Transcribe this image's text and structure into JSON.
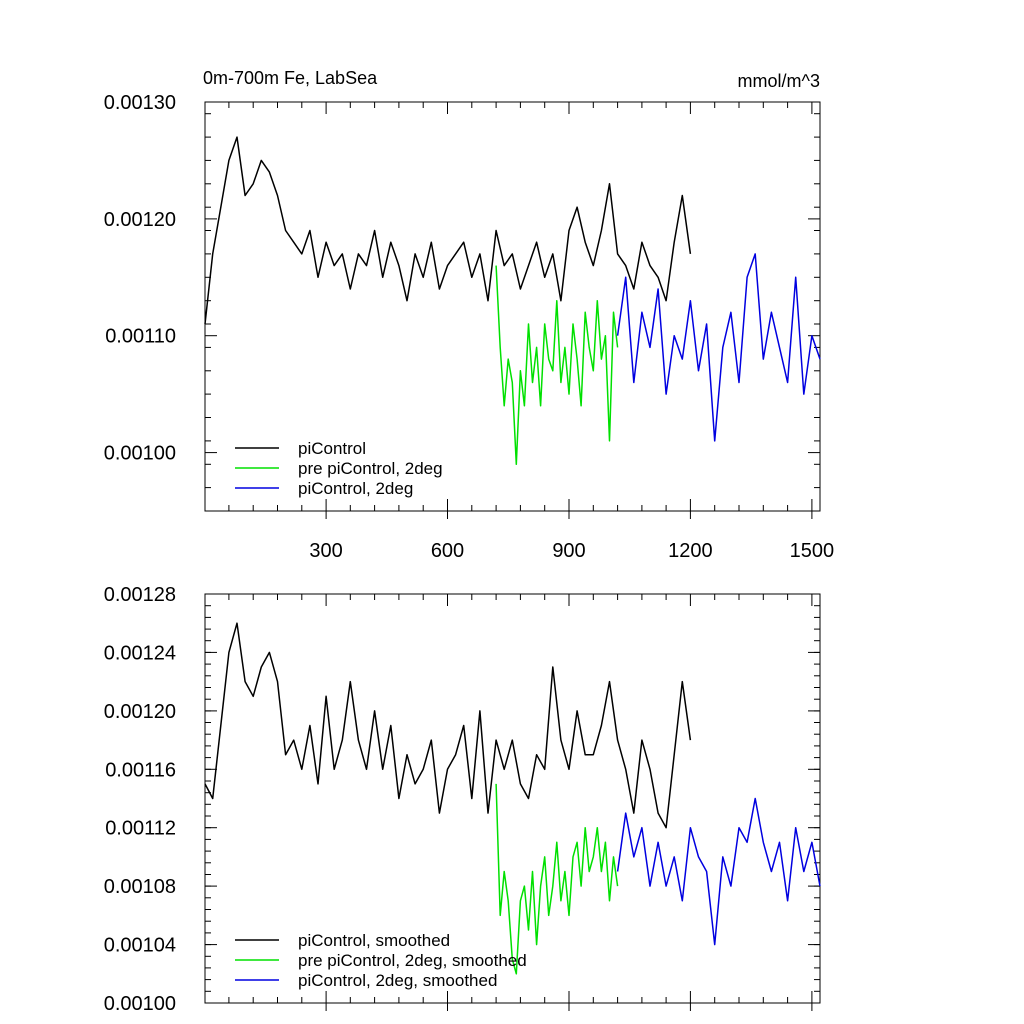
{
  "chart_data": [
    {
      "type": "line",
      "title": "0m-700m Fe, LabSea",
      "units": "mmol/m^3",
      "xlim": [
        1,
        1520
      ],
      "ylim": [
        0.00095,
        0.0013
      ],
      "xticks": [
        300,
        600,
        900,
        1200,
        1500
      ],
      "xtick_labels": [
        "300",
        "600",
        "900",
        "1200",
        "1500"
      ],
      "yticks": [
        0.001,
        0.0011,
        0.0012,
        0.0013
      ],
      "ytick_labels": [
        "0.00100",
        "0.00110",
        "0.00120",
        "0.00130"
      ],
      "legend_position": "bottom-left",
      "series": [
        {
          "name": "piControl",
          "color": "#000000",
          "x": [
            1,
            20,
            40,
            60,
            80,
            100,
            120,
            140,
            160,
            180,
            200,
            220,
            240,
            260,
            280,
            300,
            320,
            340,
            360,
            380,
            400,
            420,
            440,
            460,
            480,
            500,
            520,
            540,
            560,
            580,
            600,
            620,
            640,
            660,
            680,
            700,
            720,
            740,
            760,
            780,
            800,
            820,
            840,
            860,
            880,
            900,
            920,
            940,
            960,
            980,
            1000,
            1020,
            1040,
            1060,
            1080,
            1100,
            1120,
            1140,
            1160,
            1180,
            1200
          ],
          "values": [
            0.00111,
            0.00117,
            0.00121,
            0.00125,
            0.00127,
            0.00122,
            0.00123,
            0.00125,
            0.00124,
            0.00122,
            0.00119,
            0.00118,
            0.00117,
            0.00119,
            0.00115,
            0.00118,
            0.00116,
            0.00117,
            0.00114,
            0.00117,
            0.00116,
            0.00119,
            0.00115,
            0.00118,
            0.00116,
            0.00113,
            0.00117,
            0.00115,
            0.00118,
            0.00114,
            0.00116,
            0.00117,
            0.00118,
            0.00115,
            0.00117,
            0.00113,
            0.00119,
            0.00116,
            0.00117,
            0.00114,
            0.00116,
            0.00118,
            0.00115,
            0.00117,
            0.00113,
            0.00119,
            0.00121,
            0.00118,
            0.00116,
            0.00119,
            0.00123,
            0.00117,
            0.00116,
            0.00114,
            0.00118,
            0.00116,
            0.00115,
            0.00113,
            0.00118,
            0.00122,
            0.00117
          ]
        },
        {
          "name": "pre piControl, 2deg",
          "color": "#00e000",
          "x": [
            720,
            730,
            740,
            750,
            760,
            770,
            780,
            790,
            800,
            810,
            820,
            830,
            840,
            850,
            860,
            870,
            880,
            890,
            900,
            910,
            920,
            930,
            940,
            950,
            960,
            970,
            980,
            990,
            1000,
            1010,
            1020
          ],
          "values": [
            0.00116,
            0.00109,
            0.00104,
            0.00108,
            0.00106,
            0.00099,
            0.00107,
            0.00104,
            0.00111,
            0.00106,
            0.00109,
            0.00104,
            0.00111,
            0.00108,
            0.00107,
            0.00113,
            0.00106,
            0.00109,
            0.00105,
            0.00111,
            0.00108,
            0.00104,
            0.00112,
            0.00109,
            0.00107,
            0.00113,
            0.00108,
            0.0011,
            0.00101,
            0.00112,
            0.00109
          ]
        },
        {
          "name": "piControl, 2deg",
          "color": "#0000e0",
          "x": [
            1020,
            1040,
            1060,
            1080,
            1100,
            1120,
            1140,
            1160,
            1180,
            1200,
            1220,
            1240,
            1260,
            1280,
            1300,
            1320,
            1340,
            1360,
            1380,
            1400,
            1420,
            1440,
            1460,
            1480,
            1500,
            1520
          ],
          "values": [
            0.0011,
            0.00115,
            0.00106,
            0.00112,
            0.00109,
            0.00114,
            0.00105,
            0.0011,
            0.00108,
            0.00113,
            0.00107,
            0.00111,
            0.00101,
            0.00109,
            0.00112,
            0.00106,
            0.00115,
            0.00117,
            0.00108,
            0.00112,
            0.00109,
            0.00106,
            0.00115,
            0.00105,
            0.0011,
            0.00108
          ]
        }
      ]
    },
    {
      "type": "line",
      "title": "",
      "xlim": [
        1,
        1520
      ],
      "ylim": [
        0.001,
        0.00128
      ],
      "xticks": [
        300,
        600,
        900,
        1200,
        1500
      ],
      "yticks": [
        0.001,
        0.00104,
        0.00108,
        0.00112,
        0.00116,
        0.0012,
        0.00124,
        0.00128
      ],
      "ytick_labels": [
        "0.00100",
        "0.00104",
        "0.00108",
        "0.00112",
        "0.00116",
        "0.00120",
        "0.00124",
        "0.00128"
      ],
      "legend_position": "bottom-left",
      "series": [
        {
          "name": "piControl, smoothed",
          "color": "#000000",
          "x": [
            1,
            20,
            40,
            60,
            80,
            100,
            120,
            140,
            160,
            180,
            200,
            220,
            240,
            260,
            280,
            300,
            320,
            340,
            360,
            380,
            400,
            420,
            440,
            460,
            480,
            500,
            520,
            540,
            560,
            580,
            600,
            620,
            640,
            660,
            680,
            700,
            720,
            740,
            760,
            780,
            800,
            820,
            840,
            860,
            880,
            900,
            920,
            940,
            960,
            980,
            1000,
            1020,
            1040,
            1060,
            1080,
            1100,
            1120,
            1140,
            1160,
            1180,
            1200
          ],
          "values": [
            0.00115,
            0.00114,
            0.00119,
            0.00124,
            0.00126,
            0.00122,
            0.00121,
            0.00123,
            0.00124,
            0.00122,
            0.00117,
            0.00118,
            0.00116,
            0.00119,
            0.00115,
            0.00121,
            0.00116,
            0.00118,
            0.00122,
            0.00118,
            0.00116,
            0.0012,
            0.00116,
            0.00119,
            0.00114,
            0.00117,
            0.00115,
            0.00116,
            0.00118,
            0.00113,
            0.00116,
            0.00117,
            0.00119,
            0.00114,
            0.0012,
            0.00113,
            0.00118,
            0.00116,
            0.00118,
            0.00115,
            0.00114,
            0.00117,
            0.00116,
            0.00123,
            0.00118,
            0.00116,
            0.0012,
            0.00117,
            0.00117,
            0.00119,
            0.00122,
            0.00118,
            0.00116,
            0.00113,
            0.00118,
            0.00116,
            0.00113,
            0.00112,
            0.00117,
            0.00122,
            0.00118
          ]
        },
        {
          "name": "pre piControl, 2deg, smoothed",
          "color": "#00e000",
          "x": [
            720,
            730,
            740,
            750,
            760,
            770,
            780,
            790,
            800,
            810,
            820,
            830,
            840,
            850,
            860,
            870,
            880,
            890,
            900,
            910,
            920,
            930,
            940,
            950,
            960,
            970,
            980,
            990,
            1000,
            1010,
            1020
          ],
          "values": [
            0.00115,
            0.00106,
            0.00109,
            0.00107,
            0.00103,
            0.00102,
            0.00107,
            0.00108,
            0.00105,
            0.00109,
            0.00104,
            0.00108,
            0.0011,
            0.00106,
            0.00108,
            0.00111,
            0.00107,
            0.00109,
            0.00106,
            0.0011,
            0.00111,
            0.00108,
            0.00112,
            0.00109,
            0.0011,
            0.00112,
            0.00109,
            0.00111,
            0.00107,
            0.0011,
            0.00108
          ]
        },
        {
          "name": "piControl, 2deg, smoothed",
          "color": "#0000e0",
          "x": [
            1020,
            1040,
            1060,
            1080,
            1100,
            1120,
            1140,
            1160,
            1180,
            1200,
            1220,
            1240,
            1260,
            1280,
            1300,
            1320,
            1340,
            1360,
            1380,
            1400,
            1420,
            1440,
            1460,
            1480,
            1500,
            1520
          ],
          "values": [
            0.00109,
            0.00113,
            0.0011,
            0.00112,
            0.00108,
            0.00111,
            0.00108,
            0.0011,
            0.00107,
            0.00112,
            0.0011,
            0.00109,
            0.00104,
            0.0011,
            0.00108,
            0.00112,
            0.00111,
            0.00114,
            0.00111,
            0.00109,
            0.00111,
            0.00107,
            0.00112,
            0.00109,
            0.00111,
            0.00108
          ]
        }
      ]
    }
  ]
}
